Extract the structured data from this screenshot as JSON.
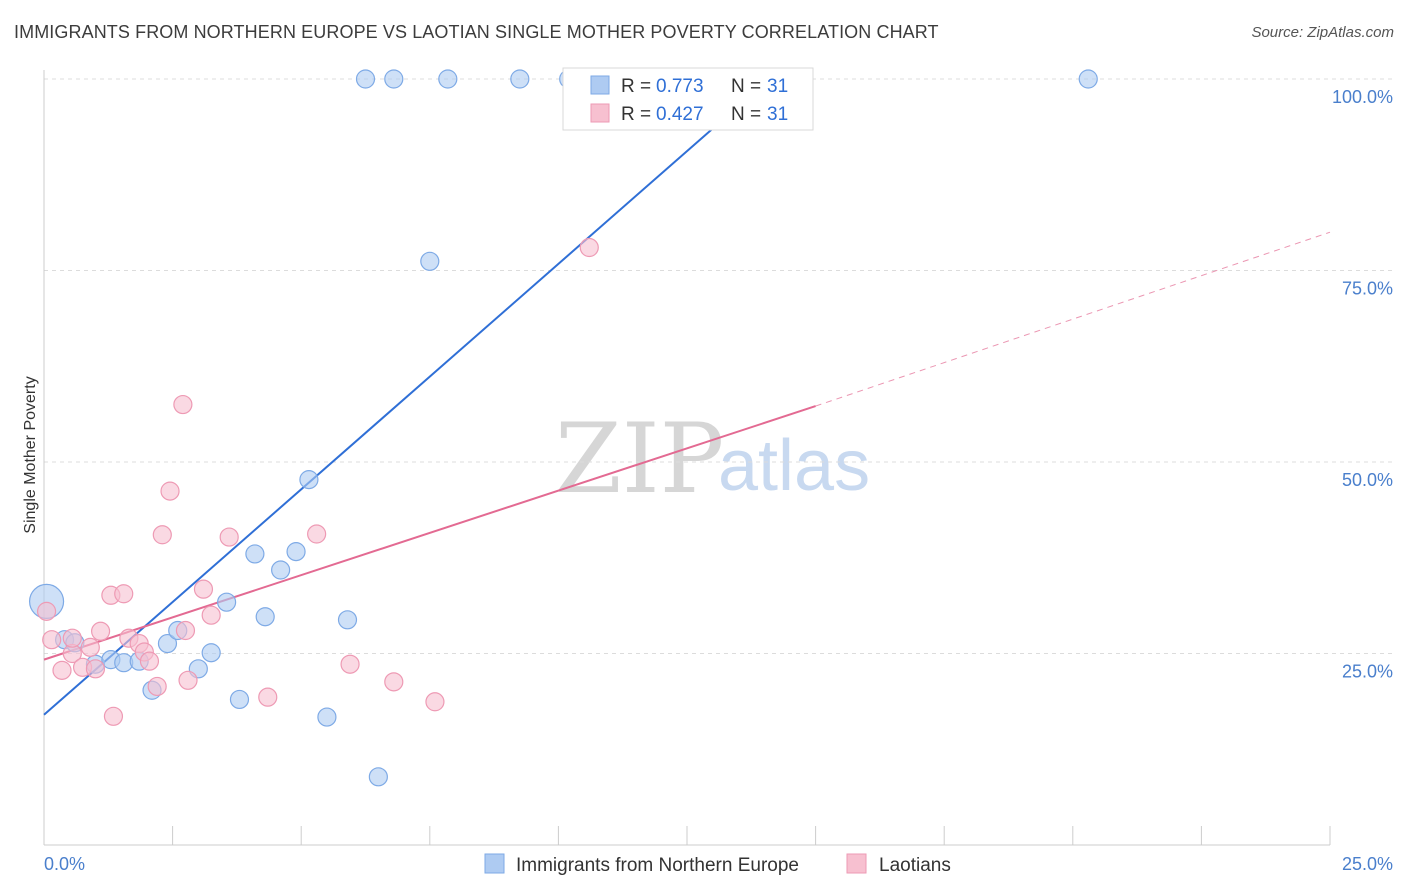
{
  "header": {
    "title": "IMMIGRANTS FROM NORTHERN EUROPE VS LAOTIAN SINGLE MOTHER POVERTY CORRELATION CHART",
    "source": "Source: ZipAtlas.com"
  },
  "watermark": {
    "zip": "ZIP",
    "atlas": "atlas"
  },
  "colors": {
    "blue_fill": "#aecbf2",
    "blue_stroke": "#7eaae6",
    "blue_line": "#2f6fd6",
    "pink_fill": "#f7c0d0",
    "pink_stroke": "#ee9ab4",
    "pink_line": "#e36a92",
    "grid": "#dcdcdc",
    "tick_text": "#4a7fcc"
  },
  "chart_data": {
    "type": "scatter",
    "title": "IMMIGRANTS FROM NORTHERN EUROPE VS LAOTIAN SINGLE MOTHER POVERTY CORRELATION CHART",
    "xlabel": "",
    "ylabel": "Single Mother Poverty",
    "xlim": [
      0,
      25
    ],
    "ylim": [
      0,
      102
    ],
    "x_tick_labels": [
      "0.0%",
      "25.0%"
    ],
    "y_ticks": [
      25,
      50,
      75,
      100
    ],
    "y_tick_labels": [
      "25.0%",
      "50.0%",
      "75.0%",
      "100.0%"
    ],
    "grid": true,
    "legend_position": "top-center",
    "legend": [
      {
        "series": "Immigrants from Northern Europe",
        "r_label": "R =",
        "r": "0.773",
        "n_label": "N =",
        "n": "31"
      },
      {
        "series": "Laotians",
        "r_label": "R =",
        "r": "0.427",
        "n_label": "N =",
        "n": "31"
      }
    ],
    "series": [
      {
        "name": "Immigrants from Northern Europe",
        "color": "#aecbf2",
        "points": [
          {
            "x": 0.05,
            "y": 31.8,
            "big": true
          },
          {
            "x": 0.4,
            "y": 26.8
          },
          {
            "x": 0.6,
            "y": 26.4
          },
          {
            "x": 1.0,
            "y": 23.6
          },
          {
            "x": 1.3,
            "y": 24.2
          },
          {
            "x": 1.55,
            "y": 23.8
          },
          {
            "x": 1.85,
            "y": 24.0
          },
          {
            "x": 2.1,
            "y": 20.2
          },
          {
            "x": 2.4,
            "y": 26.3
          },
          {
            "x": 2.6,
            "y": 28.0
          },
          {
            "x": 3.0,
            "y": 23.0
          },
          {
            "x": 3.25,
            "y": 25.1
          },
          {
            "x": 3.55,
            "y": 31.7
          },
          {
            "x": 3.8,
            "y": 19.0
          },
          {
            "x": 4.1,
            "y": 38.0
          },
          {
            "x": 4.3,
            "y": 29.8
          },
          {
            "x": 4.6,
            "y": 35.9
          },
          {
            "x": 4.9,
            "y": 38.3
          },
          {
            "x": 5.15,
            "y": 47.7
          },
          {
            "x": 5.5,
            "y": 16.7
          },
          {
            "x": 5.9,
            "y": 29.4
          },
          {
            "x": 6.5,
            "y": 8.9
          },
          {
            "x": 6.25,
            "y": 100.0
          },
          {
            "x": 6.8,
            "y": 100.0
          },
          {
            "x": 7.5,
            "y": 76.2
          },
          {
            "x": 7.85,
            "y": 100.0
          },
          {
            "x": 9.25,
            "y": 100.0
          },
          {
            "x": 10.2,
            "y": 100.0
          },
          {
            "x": 13.1,
            "y": 100.0
          },
          {
            "x": 14.1,
            "y": 100.0
          },
          {
            "x": 20.3,
            "y": 100.0
          }
        ],
        "trend": {
          "x0": 0,
          "y0": 17.0,
          "x1": 14.1,
          "y1": 100.0
        }
      },
      {
        "name": "Laotians",
        "color": "#f7c0d0",
        "points": [
          {
            "x": 0.05,
            "y": 30.5
          },
          {
            "x": 0.15,
            "y": 26.8
          },
          {
            "x": 0.35,
            "y": 22.8
          },
          {
            "x": 0.55,
            "y": 25.0
          },
          {
            "x": 0.75,
            "y": 23.2
          },
          {
            "x": 0.9,
            "y": 25.8
          },
          {
            "x": 1.0,
            "y": 23.0
          },
          {
            "x": 1.1,
            "y": 27.9
          },
          {
            "x": 1.3,
            "y": 32.6
          },
          {
            "x": 1.35,
            "y": 16.8
          },
          {
            "x": 1.55,
            "y": 32.8
          },
          {
            "x": 1.65,
            "y": 27.0
          },
          {
            "x": 1.85,
            "y": 26.3
          },
          {
            "x": 1.95,
            "y": 25.2
          },
          {
            "x": 2.05,
            "y": 24.0
          },
          {
            "x": 2.2,
            "y": 20.7
          },
          {
            "x": 2.3,
            "y": 40.5
          },
          {
            "x": 2.45,
            "y": 46.2
          },
          {
            "x": 2.7,
            "y": 57.5
          },
          {
            "x": 2.75,
            "y": 28.0
          },
          {
            "x": 2.8,
            "y": 21.5
          },
          {
            "x": 3.1,
            "y": 33.4
          },
          {
            "x": 3.25,
            "y": 30.0
          },
          {
            "x": 3.6,
            "y": 40.2
          },
          {
            "x": 4.35,
            "y": 19.3
          },
          {
            "x": 5.3,
            "y": 40.6
          },
          {
            "x": 5.95,
            "y": 23.6
          },
          {
            "x": 6.8,
            "y": 21.3
          },
          {
            "x": 7.6,
            "y": 18.7
          },
          {
            "x": 10.6,
            "y": 78.0
          },
          {
            "x": 0.55,
            "y": 27.0
          }
        ],
        "trend": {
          "x0": 0,
          "y0": 24.2,
          "x1": 15.0,
          "y1": 57.3
        },
        "trend_dashed": {
          "x0": 15.0,
          "y0": 57.3,
          "x1": 25.0,
          "y1": 80.0
        }
      }
    ]
  }
}
